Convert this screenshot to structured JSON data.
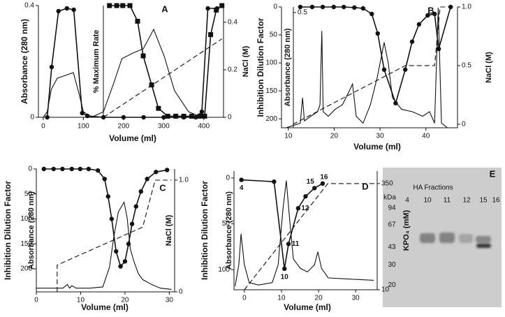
{
  "chart_data": [
    {
      "type": "line",
      "panel": "A",
      "xlabel": "Volume  (ml)",
      "ylabel": "Absorbance (280 nm)",
      "y3label": "% Maximum Rate",
      "y2label": "NaCl (M)",
      "xlim": [
        -12,
        449
      ],
      "xticks": [
        0,
        100,
        200,
        300,
        400
      ],
      "ylim": [
        0,
        0.4
      ],
      "yticks": [
        0,
        0.4
      ],
      "y2lim": [
        0,
        0.47
      ],
      "y2ticks": [
        0,
        0.2,
        0.4
      ],
      "y3lim": [
        0,
        100
      ],
      "series": [
        {
          "marker": "circle",
          "dash": false,
          "axis": "y",
          "color": "#111",
          "x": [
            10,
            21,
            38,
            59,
            76,
            97,
            110,
            150,
            200,
            250,
            300,
            350,
            380,
            395,
            410,
            433
          ],
          "values": [
            0,
            0.18,
            0.38,
            0.39,
            0.385,
            0.015,
            0.005,
            0,
            0,
            0,
            0,
            0,
            0,
            0.02,
            0.39,
            0.39
          ]
        },
        {
          "marker": null,
          "dash": false,
          "axis": "y",
          "color": "#111",
          "x": [
            0,
            10,
            20,
            35,
            55,
            75,
            90,
            100,
            120,
            150,
            175,
            196,
            223,
            249,
            275,
            301,
            327,
            362,
            395,
            420
          ],
          "values": [
            0,
            0.02,
            0.1,
            0.14,
            0.15,
            0.16,
            0.08,
            0.02,
            0,
            0.02,
            0.12,
            0.21,
            0.23,
            0.245,
            0.315,
            0.22,
            0.095,
            0.02,
            0,
            0
          ]
        },
        {
          "marker": "square",
          "dash": false,
          "axis": "y3",
          "color": "#111",
          "x": [
            165,
            183,
            198,
            216,
            235,
            249,
            270,
            287,
            310,
            330,
            350,
            370,
            390,
            402,
            417,
            431,
            445
          ],
          "values": [
            100,
            100,
            100,
            100,
            86,
            55,
            29,
            8,
            1,
            1,
            1,
            1,
            1,
            1,
            74,
            96,
            100
          ]
        },
        {
          "marker": null,
          "dash": true,
          "axis": "y2",
          "color": "#111",
          "x": [
            150,
            445
          ],
          "values": [
            0,
            0.33
          ]
        }
      ]
    },
    {
      "type": "line",
      "panel": "B",
      "xlabel": "Volume  (ml)",
      "ylabel": "Inhibition Dilution Factor",
      "y3label": "Absorbance (280 nm)",
      "y2label": "NaCl (M)",
      "xlim": [
        8.5,
        46.9
      ],
      "xticks": [
        10,
        20,
        30,
        40
      ],
      "ylim": [
        216,
        0
      ],
      "yticks": [
        0,
        50,
        100,
        150,
        200
      ],
      "y3lim": [
        0,
        0.524
      ],
      "y3ticks": [
        0.5
      ],
      "y2lim": [
        -0.03,
        1
      ],
      "y2ticks": [
        0,
        0.5,
        {
          "value": 1,
          "label": "1.0"
        }
      ],
      "series": [
        {
          "marker": "circle",
          "dash": false,
          "axis": "y",
          "color": "#111",
          "x": [
            12.6,
            15.2,
            17.5,
            19.9,
            22.1,
            24.4,
            26.3,
            28.2,
            29.5,
            30.9,
            33.4,
            35.5,
            37,
            38.5,
            40.4,
            41.9,
            42.8,
            45.4
          ],
          "values": [
            0,
            0,
            0,
            0,
            0,
            1,
            2.5,
            12.5,
            47.5,
            112,
            172,
            112,
            62,
            31,
            15,
            12.5,
            75,
            0
          ]
        },
        {
          "marker": null,
          "dash": false,
          "axis": "y3",
          "color": "#111",
          "x": [
            9.5,
            11.1,
            12.6,
            13.1,
            13.5,
            14.9,
            16.4,
            16.9,
            17.3,
            17.6,
            18.7,
            20.2,
            21.8,
            23.3,
            24,
            24.8,
            26.3,
            27.9,
            29.4,
            30.9,
            31.8,
            32.7,
            34.7,
            37,
            39.3,
            40.8,
            41.9,
            42.7,
            43.4,
            44.7
          ],
          "values": [
            0,
            0.01,
            0.02,
            0.13,
            0.03,
            0.05,
            0.07,
            0.1,
            0.42,
            0.07,
            0.05,
            0.08,
            0.1,
            0.16,
            0.19,
            0.05,
            0.02,
            0.1,
            0.22,
            0.37,
            0.28,
            0.13,
            0.08,
            0.07,
            0.05,
            0.07,
            0.02,
            0.52,
            0.02,
            0
          ]
        },
        {
          "marker": null,
          "dash": true,
          "axis": "y2",
          "color": "#111",
          "x": [
            11,
            35.5,
            41.9,
            43.1,
            46.5
          ],
          "values": [
            0,
            0.5,
            0.5,
            1,
            1
          ]
        }
      ]
    },
    {
      "type": "line",
      "panel": "C",
      "xlabel": "Volume  (ml)",
      "ylabel": "Inhibition Dilution Factor",
      "y3label": "Absorbance (280 nm)",
      "y2label": "NaCl (M)",
      "xlim": [
        0,
        31.2
      ],
      "xticks": [
        0,
        10,
        20,
        30
      ],
      "ylim": [
        246,
        0
      ],
      "yticks": [
        0,
        50,
        100,
        150,
        200
      ],
      "y3lim": [
        0,
        1
      ],
      "y2lim": [
        0,
        1.1
      ],
      "y2ticks": [
        0,
        {
          "value": 1,
          "label": "1.0"
        }
      ],
      "series": [
        {
          "marker": "circle",
          "dash": false,
          "axis": "y",
          "color": "#111",
          "x": [
            1.7,
            3.9,
            5.9,
            8,
            9.9,
            11.8,
            13.9,
            15.4,
            16.2,
            17,
            18,
            19,
            20,
            20.8,
            21.6,
            22.5,
            23.6,
            25,
            27,
            29.5
          ],
          "values": [
            0,
            0,
            0,
            0,
            0,
            0,
            3,
            20,
            55,
            100,
            165,
            195,
            185,
            150,
            110,
            75,
            45,
            20,
            6,
            2
          ]
        },
        {
          "marker": null,
          "dash": false,
          "axis": "y3",
          "color": "#111",
          "x": [
            0,
            6,
            7,
            7.5,
            8,
            9,
            12,
            15,
            16.5,
            17.5,
            18.5,
            19.8,
            20.5,
            21.2,
            22,
            23,
            24,
            26,
            28,
            30.5
          ],
          "values": [
            0.03,
            0.03,
            0.06,
            0.03,
            0.05,
            0.03,
            0.03,
            0.04,
            0.2,
            0.45,
            0.65,
            0.73,
            0.6,
            0.35,
            0.25,
            0.15,
            0.1,
            0.06,
            0.03,
            0.02
          ]
        },
        {
          "marker": null,
          "dash": true,
          "axis": "y2",
          "color": "#111",
          "x": [
            4.7,
            4.7,
            24,
            26.8,
            30.5
          ],
          "values": [
            0,
            0.24,
            0.58,
            1,
            1
          ]
        }
      ]
    },
    {
      "type": "line",
      "panel": "D",
      "xlabel": "Volume  (ml)",
      "ylabel": "Inhibition Dilution Factor",
      "y3label": "Absorbance (280 nm)",
      "y2label": "KPO₄ (mM)",
      "xlim": [
        -2.8,
        35.8
      ],
      "xticks": [
        0,
        10,
        20,
        30
      ],
      "ylim": [
        122,
        -7.6
      ],
      "yticks": [
        0,
        50,
        100
      ],
      "y3lim": [
        0,
        1
      ],
      "y2lim": [
        10,
        390
      ],
      "y2ticks": [
        10,
        350
      ],
      "series": [
        {
          "marker": "circle",
          "dash": false,
          "axis": "y",
          "color": "#111",
          "x": [
            -0.8,
            8,
            10.8,
            11.9,
            14.5,
            16.5,
            18.9,
            21.1
          ],
          "values": [
            2,
            4,
            99,
            72,
            33,
            20,
            11,
            6
          ],
          "point_labels": [
            "4",
            null,
            "10",
            "11",
            "12",
            null,
            "15",
            "16"
          ]
        },
        {
          "marker": null,
          "dash": false,
          "axis": "y3",
          "color": "#111",
          "x": [
            -2.5,
            -1.5,
            -0.9,
            0,
            1.3,
            3.8,
            7.5,
            9.1,
            10.4,
            11.3,
            12.3,
            13.2,
            15.1,
            17,
            18.9,
            19.8,
            20.8,
            22.6,
            28.3,
            34.9
          ],
          "values": [
            0.03,
            0.21,
            0.47,
            0.21,
            0.06,
            0.04,
            0.06,
            0.21,
            0.68,
            0.92,
            0.56,
            0.26,
            0.18,
            0.15,
            0.21,
            0.32,
            0.18,
            0.1,
            0.09,
            0.08
          ]
        },
        {
          "marker": null,
          "dash": true,
          "axis": "y2",
          "color": "#111",
          "x": [
            0,
            22.5,
            35.5
          ],
          "values": [
            10,
            350,
            350
          ]
        }
      ]
    },
    {
      "type": "gel",
      "panel": "E",
      "title": "HA Fractions",
      "ylabel": "kDa",
      "categories": [
        "4",
        "10",
        "11",
        "12",
        "15",
        "16"
      ],
      "ylim": [
        12.8,
        212
      ],
      "log": true,
      "yticks": [
        94,
        67,
        43,
        30,
        20
      ]
    }
  ]
}
